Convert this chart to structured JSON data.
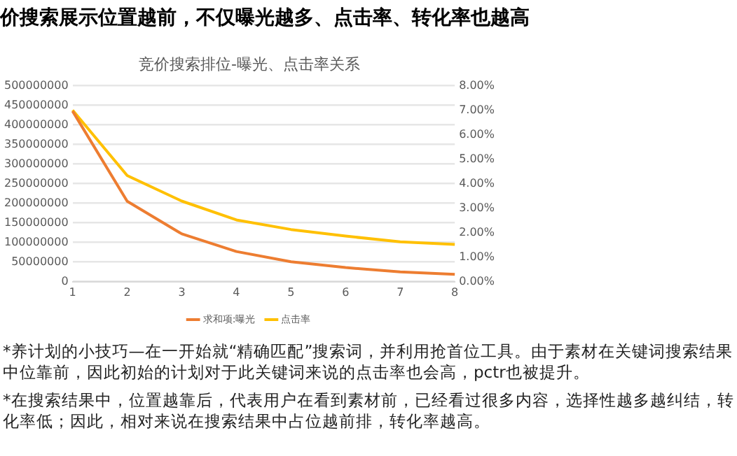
{
  "chart_data": {
    "type": "line",
    "title": "价搜索展示位置越前，不仅曝光越多、点击率、转化率也越高",
    "subtitle": "竞价搜索排位-曝光、点击率关系",
    "categories": [
      "1",
      "2",
      "3",
      "4",
      "5",
      "6",
      "7",
      "8"
    ],
    "series": [
      {
        "name": "求和项:曝光",
        "color": "#ed7d31",
        "values": [
          435000000,
          205000000,
          122000000,
          77000000,
          51000000,
          36000000,
          25000000,
          19000000
        ]
      },
      {
        "name": "点击率",
        "color": "#ffc000",
        "axis": "y2",
        "values": [
          7.0,
          4.33,
          3.29,
          2.52,
          2.13,
          1.86,
          1.63,
          1.52
        ]
      }
    ],
    "ylim": [
      0,
      500000000
    ],
    "yticks": [
      0,
      50000000,
      100000000,
      150000000,
      200000000,
      250000000,
      300000000,
      350000000,
      400000000,
      450000000,
      500000000
    ],
    "y2lim": [
      0,
      8
    ],
    "y2ticks": [
      {
        "value": 0,
        "label": "0.00%"
      },
      {
        "value": 1,
        "label": "1.00%"
      },
      {
        "value": 2,
        "label": "2.00%"
      },
      {
        "value": 3,
        "label": "3.00%"
      },
      {
        "value": 4,
        "label": "4.00%"
      },
      {
        "value": 5,
        "label": "5.00%"
      },
      {
        "value": 6,
        "label": "6.00%"
      },
      {
        "value": 7,
        "label": "7.00%"
      },
      {
        "value": 8,
        "label": "8.00%"
      }
    ],
    "grid": "y",
    "legend": "bottom",
    "marker": "none",
    "annotations": [
      "*养计划的小技巧—在一开始就“精确匹配”搜索词，并利用抢首位工具。由于素材在关键词搜索结果中位靠前，因此初始的计划对于此关键词来说的点击率也会高，pctr也被提升。",
      "*在搜索结果中，位置越靠后，代表用户在看到素材前，已经看过很多内容，选择性越多越纠结，转化率低；因此，相对来说在搜索结果中占位越前排，转化率越高。"
    ]
  }
}
